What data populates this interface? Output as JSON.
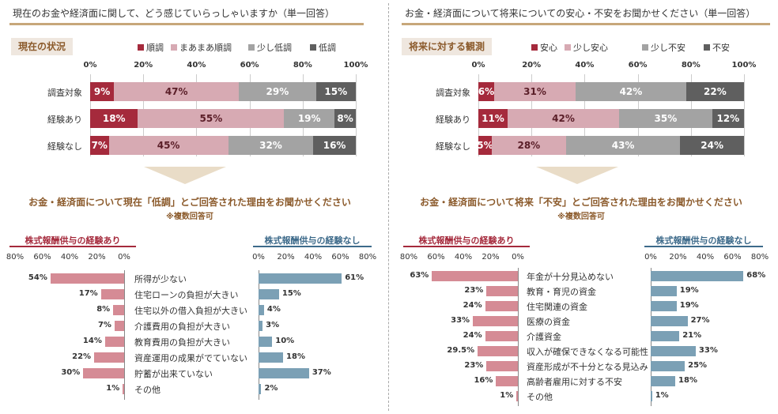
{
  "colors": {
    "c1": "#a52a3c",
    "c2": "#d7aab3",
    "c3": "#a3a3a3",
    "c4": "#5f5f5f",
    "pink_bar": "#d58b95",
    "blue_bar": "#7ba0b5",
    "pink_hdr": "#a52a3c",
    "blue_hdr": "#3d6a8a"
  },
  "left": {
    "header": "現在のお金や経済面に関して、どう感じていらっしゃいますか（単一回答）",
    "tag": "現在の状況",
    "reason_title": "お金・経済面について現在「低調」とご回答された理由をお聞かせください",
    "reason_note": "※複数回答可",
    "with_label": "株式報酬供与の経験あり",
    "without_label": "株式報酬供与の経験なし"
  },
  "right": {
    "header": "お金・経済面について将来についての安心・不安をお聞かせください（単一回答）",
    "tag": "将来に対する観測",
    "reason_title": "お金・経済面について将来「不安」とご回答された理由をお聞かせください",
    "reason_note": "※複数回答可",
    "with_label": "株式報酬供与の経験あり",
    "without_label": "株式報酬供与の経験なし"
  },
  "chart_data": [
    {
      "type": "bar",
      "stacked": true,
      "orientation": "horizontal",
      "categories": [
        "調査対象",
        "経験あり",
        "経験なし"
      ],
      "series": [
        {
          "name": "順調",
          "values": [
            9,
            18,
            7
          ]
        },
        {
          "name": "まあまあ順調",
          "values": [
            47,
            55,
            45
          ]
        },
        {
          "name": "少し低調",
          "values": [
            29,
            19,
            32
          ]
        },
        {
          "name": "低調",
          "values": [
            15,
            8,
            16
          ]
        }
      ],
      "xticks": [
        "0%",
        "20%",
        "40%",
        "60%",
        "80%",
        "100%"
      ],
      "xlim": [
        0,
        100
      ],
      "legend": "top"
    },
    {
      "type": "bar",
      "stacked": true,
      "orientation": "horizontal",
      "categories": [
        "調査対象",
        "経験あり",
        "経験なし"
      ],
      "series": [
        {
          "name": "安心",
          "values": [
            6,
            11,
            5
          ]
        },
        {
          "name": "少し安心",
          "values": [
            31,
            42,
            28
          ]
        },
        {
          "name": "少し不安",
          "values": [
            42,
            35,
            43
          ]
        },
        {
          "name": "不安",
          "values": [
            22,
            12,
            24
          ]
        }
      ],
      "xticks": [
        "0%",
        "20%",
        "40%",
        "60%",
        "80%",
        "100%"
      ],
      "xlim": [
        0,
        100
      ],
      "legend": "top"
    },
    {
      "type": "bar",
      "orientation": "horizontal",
      "layout": "butterfly",
      "categories": [
        "所得が少ない",
        "住宅ローンの負担が大きい",
        "住宅以外の借入負担が大きい",
        "介護費用の負担が大きい",
        "教育費用の負担が大きい",
        "資産運用の成果がでていない",
        "貯蓄が出来ていない",
        "その他"
      ],
      "series": [
        {
          "name": "株式報酬供与の経験あり",
          "values": [
            54,
            17,
            8,
            7,
            14,
            22,
            30,
            1
          ],
          "labels": [
            "54%",
            "17%",
            "8%",
            "7%",
            "14%",
            "22%",
            "30%",
            "1%"
          ]
        },
        {
          "name": "株式報酬供与の経験なし",
          "values": [
            61,
            15,
            4,
            3,
            10,
            18,
            37,
            2
          ],
          "labels": [
            "61%",
            "15%",
            "4%",
            "3%",
            "10%",
            "18%",
            "37%",
            "2%"
          ]
        }
      ],
      "xticks_left": [
        "80%",
        "60%",
        "40%",
        "20%",
        "0%"
      ],
      "xticks_right": [
        "0%",
        "20%",
        "40%",
        "60%",
        "80%"
      ],
      "xlim": [
        0,
        80
      ]
    },
    {
      "type": "bar",
      "orientation": "horizontal",
      "layout": "butterfly",
      "categories": [
        "年金が十分見込めない",
        "教育・育児の資金",
        "住宅関連の資金",
        "医療の資金",
        "介護資金",
        "収入が確保できなくなる可能性",
        "資産形成が不十分となる見込み",
        "高齢者雇用に対する不安",
        "その他"
      ],
      "series": [
        {
          "name": "株式報酬供与の経験あり",
          "values": [
            63,
            23,
            24,
            33,
            24,
            29.5,
            23,
            16,
            1
          ],
          "labels": [
            "63%",
            "23%",
            "24%",
            "33%",
            "24%",
            "29.5%",
            "23%",
            "16%",
            "1%"
          ]
        },
        {
          "name": "株式報酬供与の経験なし",
          "values": [
            68,
            19,
            19,
            27,
            21,
            33,
            25,
            18,
            1
          ],
          "labels": [
            "68%",
            "19%",
            "19%",
            "27%",
            "21%",
            "33%",
            "25%",
            "18%",
            "1%"
          ]
        }
      ],
      "xticks_left": [
        "80%",
        "60%",
        "40%",
        "20%",
        "0%"
      ],
      "xticks_right": [
        "0%",
        "20%",
        "40%",
        "60%",
        "80%"
      ],
      "xlim": [
        0,
        80
      ]
    }
  ]
}
